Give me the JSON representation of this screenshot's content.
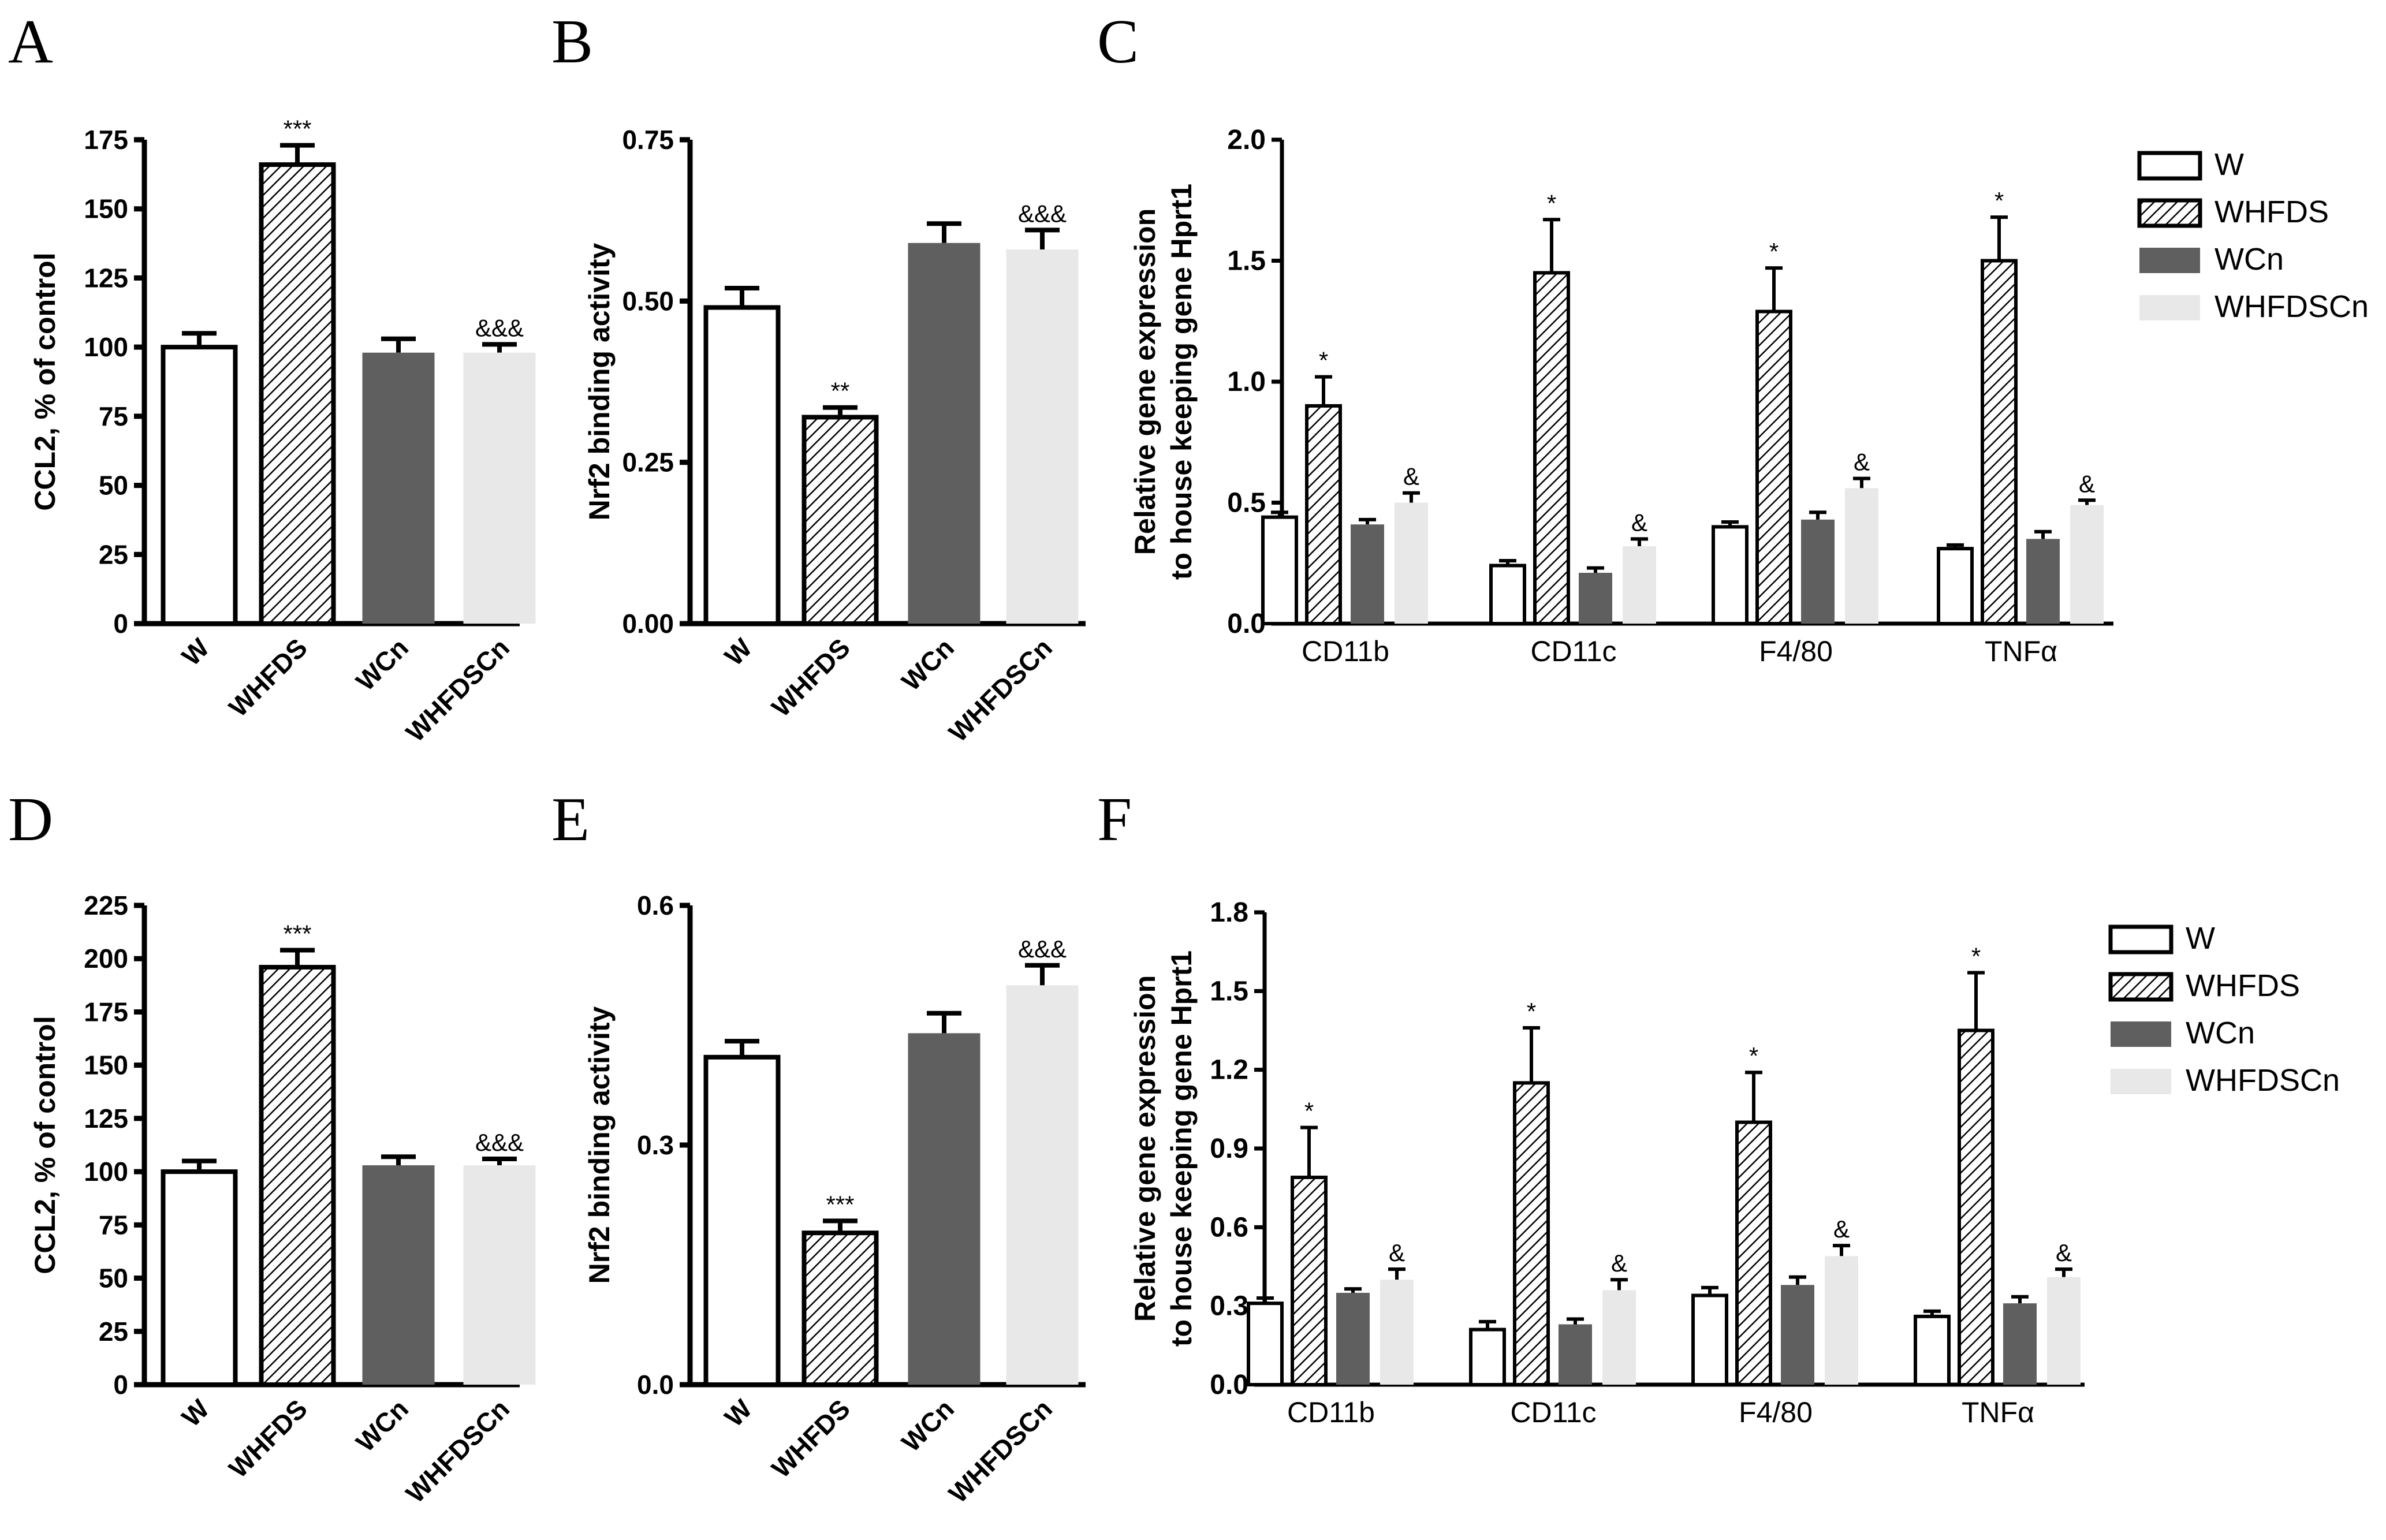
{
  "figure": {
    "colors": {
      "W": "#ffffff",
      "WHFDS": "hatch",
      "WCn": "#5f5f5f",
      "WHFDSCn": "#e8e8e8"
    },
    "legend": [
      "W",
      "WHFDS",
      "WCn",
      "WHFDSCn"
    ]
  },
  "chart_data": [
    {
      "panel": "A",
      "type": "bar",
      "ylabel": "CCL2, % of control",
      "ylim": [
        0,
        175
      ],
      "yticks": [
        "0",
        "25",
        "50",
        "75",
        "100",
        "125",
        "150",
        "175"
      ],
      "categories": [
        "W",
        "WHFDS",
        "WCn",
        "WHFDSCn"
      ],
      "values": [
        100,
        166,
        98,
        98
      ],
      "errors": [
        5,
        7,
        5,
        3
      ],
      "annotations": [
        "",
        "***",
        "",
        "&&&"
      ]
    },
    {
      "panel": "B",
      "type": "bar",
      "ylabel": "Nrf2 binding activity",
      "ylim": [
        0,
        0.75
      ],
      "yticks": [
        "0.00",
        "0.25",
        "0.50",
        "0.75"
      ],
      "categories": [
        "W",
        "WHFDS",
        "WCn",
        "WHFDSCn"
      ],
      "values": [
        0.49,
        0.32,
        0.59,
        0.58
      ],
      "errors": [
        0.03,
        0.015,
        0.03,
        0.03
      ],
      "annotations": [
        "",
        "**",
        "",
        "&&&"
      ]
    },
    {
      "panel": "C",
      "type": "bar",
      "ylabel": [
        "Relative gene expression",
        "to house keeping gene Hprt1"
      ],
      "ylim": [
        0,
        2.0
      ],
      "yticks": [
        "0.0",
        "0.5",
        "1.0",
        "1.5",
        "2.0"
      ],
      "categories": [
        "CD11b",
        "CD11c",
        "F4/80",
        "TNFα"
      ],
      "series": [
        {
          "name": "W",
          "values": [
            0.44,
            0.24,
            0.4,
            0.31
          ],
          "errors": [
            0.02,
            0.02,
            0.02,
            0.015
          ],
          "annotations": [
            "",
            "",
            "",
            ""
          ]
        },
        {
          "name": "WHFDS",
          "values": [
            0.9,
            1.45,
            1.29,
            1.5
          ],
          "errors": [
            0.12,
            0.22,
            0.18,
            0.18
          ],
          "annotations": [
            "*",
            "*",
            "*",
            "*"
          ]
        },
        {
          "name": "WCn",
          "values": [
            0.41,
            0.21,
            0.43,
            0.35
          ],
          "errors": [
            0.02,
            0.02,
            0.03,
            0.03
          ],
          "annotations": [
            "",
            "",
            "",
            ""
          ]
        },
        {
          "name": "WHFDSCn",
          "values": [
            0.5,
            0.32,
            0.56,
            0.49
          ],
          "errors": [
            0.04,
            0.03,
            0.04,
            0.02
          ],
          "annotations": [
            "&",
            "&",
            "&",
            "&"
          ]
        }
      ]
    },
    {
      "panel": "D",
      "type": "bar",
      "ylabel": "CCL2, % of control",
      "ylim": [
        0,
        225
      ],
      "yticks": [
        "0",
        "25",
        "50",
        "75",
        "100",
        "125",
        "150",
        "175",
        "200",
        "225"
      ],
      "categories": [
        "W",
        "WHFDS",
        "WCn",
        "WHFDSCn"
      ],
      "values": [
        100,
        196,
        103,
        103
      ],
      "errors": [
        5,
        8,
        4,
        3
      ],
      "annotations": [
        "",
        "***",
        "",
        "&&&"
      ]
    },
    {
      "panel": "E",
      "type": "bar",
      "ylabel": "Nrf2 binding activity",
      "ylim": [
        0,
        0.6
      ],
      "yticks": [
        "0.0",
        "0.3",
        "0.6"
      ],
      "categories": [
        "W",
        "WHFDS",
        "WCn",
        "WHFDSCn"
      ],
      "values": [
        0.41,
        0.19,
        0.44,
        0.5
      ],
      "errors": [
        0.02,
        0.015,
        0.025,
        0.025
      ],
      "annotations": [
        "",
        "***",
        "",
        "&&&"
      ]
    },
    {
      "panel": "F",
      "type": "bar",
      "ylabel": [
        "Relative gene expression",
        "to house keeping gene Hprt1"
      ],
      "ylim": [
        0,
        1.8
      ],
      "yticks": [
        "0.0",
        "0.3",
        "0.6",
        "0.9",
        "1.2",
        "1.5",
        "1.8"
      ],
      "categories": [
        "CD11b",
        "CD11c",
        "F4/80",
        "TNFα"
      ],
      "series": [
        {
          "name": "W",
          "values": [
            0.31,
            0.21,
            0.34,
            0.26
          ],
          "errors": [
            0.02,
            0.03,
            0.03,
            0.02
          ],
          "annotations": [
            "",
            "",
            "",
            ""
          ]
        },
        {
          "name": "WHFDS",
          "values": [
            0.79,
            1.15,
            1.0,
            1.35
          ],
          "errors": [
            0.19,
            0.21,
            0.19,
            0.22
          ],
          "annotations": [
            "*",
            "*",
            "*",
            "*"
          ]
        },
        {
          "name": "WCn",
          "values": [
            0.35,
            0.23,
            0.38,
            0.31
          ],
          "errors": [
            0.015,
            0.02,
            0.03,
            0.025
          ],
          "annotations": [
            "",
            "",
            "",
            ""
          ]
        },
        {
          "name": "WHFDSCn",
          "values": [
            0.4,
            0.36,
            0.49,
            0.41
          ],
          "errors": [
            0.04,
            0.04,
            0.04,
            0.03
          ],
          "annotations": [
            "&",
            "&",
            "&",
            "&"
          ]
        }
      ]
    }
  ]
}
